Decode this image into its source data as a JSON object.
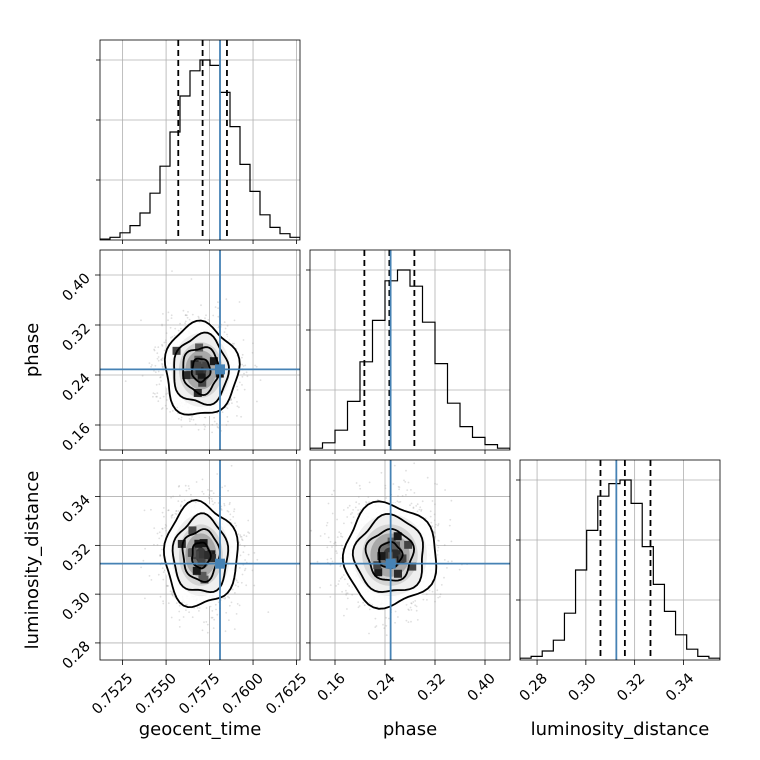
{
  "colors": {
    "truth": "#4682b4",
    "density": "#000000",
    "scatter": "#9a9a9a",
    "grid": "#b0b0b0"
  },
  "chart_data": {
    "type": "corner",
    "grid": true,
    "parameters": [
      {
        "name": "geocent_time",
        "label": "geocent_time",
        "range": [
          0.7512,
          0.7627
        ],
        "ticks": [
          0.7525,
          0.755,
          0.7575,
          0.76,
          0.7625
        ],
        "tick_labels": [
          "0.7525",
          "0.7550",
          "0.7575",
          "0.7600",
          "0.7625"
        ],
        "truth": 0.7581,
        "quantiles": [
          0.7557,
          0.7571,
          0.7585
        ],
        "histogram": [
          0.005,
          0.015,
          0.04,
          0.08,
          0.15,
          0.26,
          0.41,
          0.6,
          0.8,
          0.94,
          1.0,
          0.97,
          0.82,
          0.63,
          0.42,
          0.27,
          0.14,
          0.07,
          0.035,
          0.015
        ]
      },
      {
        "name": "phase",
        "label": "phase",
        "range": [
          0.12,
          0.44
        ],
        "ticks": [
          0.16,
          0.24,
          0.32,
          0.4
        ],
        "tick_labels": [
          "0.16",
          "0.24",
          "0.32",
          "0.40"
        ],
        "truth": 0.249,
        "quantiles": [
          0.207,
          0.247,
          0.287
        ],
        "histogram": [
          0.01,
          0.04,
          0.11,
          0.27,
          0.49,
          0.72,
          0.94,
          1.0,
          0.91,
          0.71,
          0.48,
          0.26,
          0.13,
          0.07,
          0.03,
          0.01
        ]
      },
      {
        "name": "luminosity_distance",
        "label": "luminosity_distance",
        "range": [
          0.273,
          0.355
        ],
        "ticks": [
          0.28,
          0.3,
          0.32,
          0.34
        ],
        "tick_labels": [
          "0.28",
          "0.30",
          "0.32",
          "0.34"
        ],
        "truth": 0.3125,
        "quantiles": [
          0.306,
          0.316,
          0.3265
        ],
        "histogram": [
          0.01,
          0.02,
          0.05,
          0.11,
          0.26,
          0.5,
          0.72,
          0.91,
          0.98,
          1.0,
          0.87,
          0.63,
          0.42,
          0.27,
          0.14,
          0.06,
          0.02,
          0.01
        ]
      }
    ],
    "pairs": [
      {
        "x": "geocent_time",
        "y": "phase",
        "mean": [
          0.757,
          0.248
        ],
        "sigma": [
          0.00105,
          0.037
        ]
      },
      {
        "x": "geocent_time",
        "y": "luminosity_distance",
        "mean": [
          0.757,
          0.316
        ],
        "sigma": [
          0.00105,
          0.0105
        ]
      },
      {
        "x": "phase",
        "y": "luminosity_distance",
        "mean": [
          0.248,
          0.316
        ],
        "sigma": [
          0.037,
          0.0105
        ]
      }
    ]
  }
}
